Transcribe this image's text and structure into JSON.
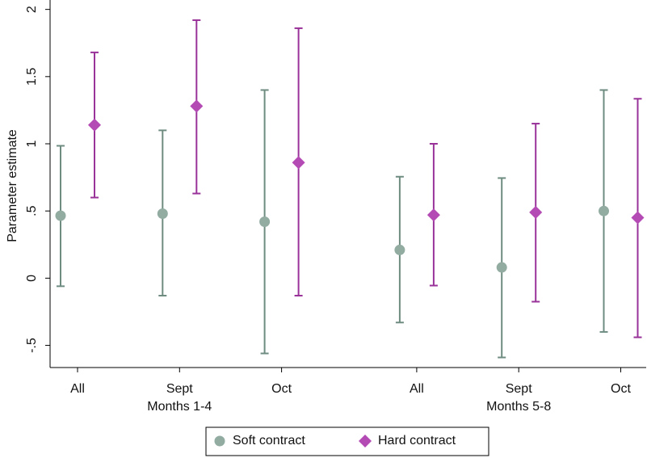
{
  "chart_data": {
    "type": "errorbar",
    "y_label": "Parameter estimate",
    "categories": [
      "All",
      "Sept",
      "Oct",
      "All",
      "Sept",
      "Oct"
    ],
    "group_labels": [
      "Months 1-4",
      "Months 5-8"
    ],
    "ylim": [
      -0.665,
      2.07
    ],
    "yticks": [
      {
        "value": -0.5,
        "label": "-.5"
      },
      0,
      {
        "value": 0.5,
        "label": ".5"
      },
      1,
      1.5,
      2
    ],
    "series": [
      {
        "name": "Soft contract",
        "color": "#92aca2",
        "bar_color": "#6f8c81",
        "marker": "circle",
        "values": [
          0.465,
          0.48,
          0.42,
          0.21,
          0.08,
          0.5
        ],
        "lower": [
          -0.06,
          -0.13,
          -0.56,
          -0.33,
          -0.59,
          -0.4
        ],
        "upper": [
          0.985,
          1.1,
          1.4,
          0.755,
          0.745,
          1.4
        ]
      },
      {
        "name": "Hard contract",
        "color": "#b44ab4",
        "bar_color": "#993399",
        "marker": "diamond",
        "values": [
          1.14,
          1.28,
          0.86,
          0.47,
          0.49,
          0.45
        ],
        "lower": [
          0.6,
          0.63,
          -0.13,
          -0.055,
          -0.175,
          -0.44
        ],
        "upper": [
          1.68,
          1.92,
          1.86,
          1.0,
          1.15,
          1.335
        ]
      }
    ]
  }
}
